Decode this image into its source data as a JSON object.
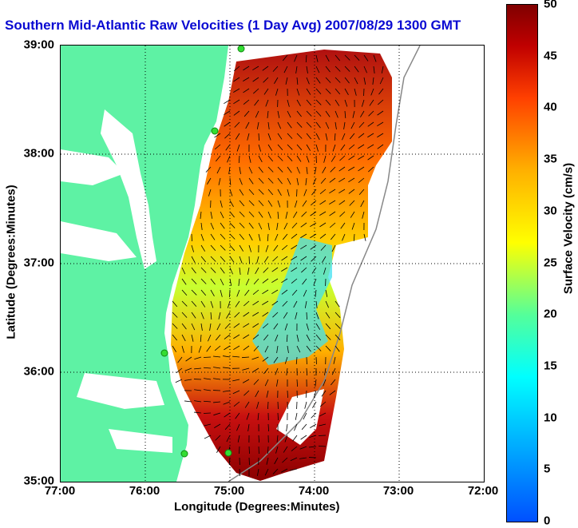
{
  "title": "Southern Mid-Atlantic Raw Velocities (1 Day Avg) 2007/08/29 1300 GMT",
  "x_axis": {
    "label": "Longitude (Degrees:Minutes)",
    "ticks": [
      "77:00",
      "76:00",
      "75:00",
      "74:00",
      "73:00",
      "72:00"
    ]
  },
  "y_axis": {
    "label": "Latitude (Degrees:Minutes)",
    "ticks": [
      "39:00",
      "38:00",
      "37:00",
      "36:00",
      "35:00"
    ]
  },
  "colorbar": {
    "label": "Surface Velocity (cm/s)",
    "ticks": [
      "50",
      "45",
      "40",
      "35",
      "30",
      "25",
      "20",
      "15",
      "10",
      "5",
      "0"
    ],
    "range": [
      0,
      50
    ]
  },
  "colors": {
    "land": "#5ef2a4",
    "title": "#0a0ad2",
    "station": "#33dd33"
  },
  "map": {
    "lon_range": [
      -77,
      -72
    ],
    "lat_range": [
      35,
      39
    ],
    "grid": true,
    "stations": 5,
    "vector_field": "surface current arrows over speed shading"
  }
}
